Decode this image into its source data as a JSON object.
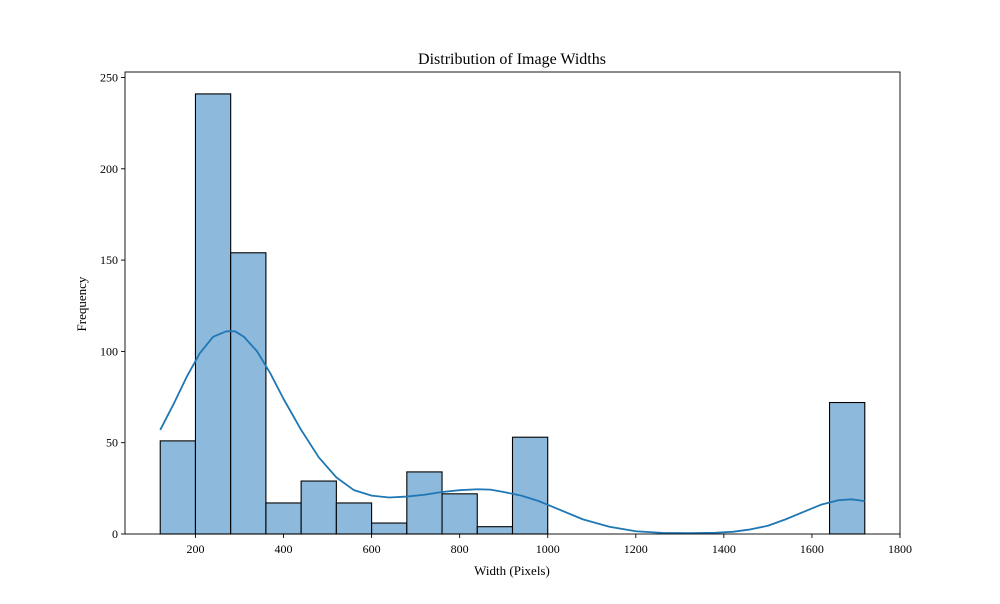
{
  "chart_data": {
    "type": "histogram",
    "title": "Distribution of Image Widths",
    "xlabel": "Width (Pixels)",
    "ylabel": "Frequency",
    "xlim": [
      40,
      1800
    ],
    "ylim": [
      0,
      253
    ],
    "x_ticks": [
      200,
      400,
      600,
      800,
      1000,
      1200,
      1400,
      1600,
      1800
    ],
    "y_ticks": [
      0,
      50,
      100,
      150,
      200,
      250
    ],
    "grid": false,
    "legend": "none",
    "bins": [
      {
        "x0": 120,
        "x1": 200,
        "count": 51
      },
      {
        "x0": 200,
        "x1": 280,
        "count": 241
      },
      {
        "x0": 280,
        "x1": 360,
        "count": 154
      },
      {
        "x0": 360,
        "x1": 440,
        "count": 17
      },
      {
        "x0": 440,
        "x1": 520,
        "count": 29
      },
      {
        "x0": 520,
        "x1": 600,
        "count": 17
      },
      {
        "x0": 600,
        "x1": 680,
        "count": 6
      },
      {
        "x0": 680,
        "x1": 760,
        "count": 34
      },
      {
        "x0": 760,
        "x1": 840,
        "count": 22
      },
      {
        "x0": 840,
        "x1": 920,
        "count": 4
      },
      {
        "x0": 920,
        "x1": 1000,
        "count": 53
      },
      {
        "x0": 1000,
        "x1": 1080,
        "count": 0
      },
      {
        "x0": 1080,
        "x1": 1160,
        "count": 0
      },
      {
        "x0": 1160,
        "x1": 1240,
        "count": 0
      },
      {
        "x0": 1240,
        "x1": 1320,
        "count": 0
      },
      {
        "x0": 1320,
        "x1": 1400,
        "count": 0
      },
      {
        "x0": 1400,
        "x1": 1480,
        "count": 0
      },
      {
        "x0": 1480,
        "x1": 1560,
        "count": 0
      },
      {
        "x0": 1560,
        "x1": 1640,
        "count": 0
      },
      {
        "x0": 1640,
        "x1": 1720,
        "count": 72
      }
    ],
    "kde_curve": {
      "x": [
        120,
        150,
        180,
        210,
        240,
        270,
        290,
        310,
        340,
        370,
        400,
        440,
        480,
        520,
        560,
        600,
        640,
        680,
        720,
        760,
        800,
        840,
        870,
        900,
        940,
        980,
        1020,
        1080,
        1140,
        1200,
        1260,
        1320,
        1380,
        1420,
        1460,
        1500,
        1540,
        1580,
        1620,
        1660,
        1690,
        1720
      ],
      "y": [
        57,
        71,
        86,
        99,
        108,
        111,
        111,
        108,
        100,
        88,
        74,
        57,
        42,
        31,
        24,
        21,
        20,
        20.5,
        21.5,
        23,
        24,
        24.5,
        24.3,
        23,
        21,
        18,
        14,
        8,
        4,
        1.5,
        0.6,
        0.5,
        0.7,
        1.2,
        2.5,
        4.5,
        8,
        12,
        16,
        18.5,
        19,
        18
      ]
    },
    "colors": {
      "bar_fill": "#8db9dc",
      "bar_edge": "#000000",
      "kde_line": "#1f77b4"
    }
  }
}
